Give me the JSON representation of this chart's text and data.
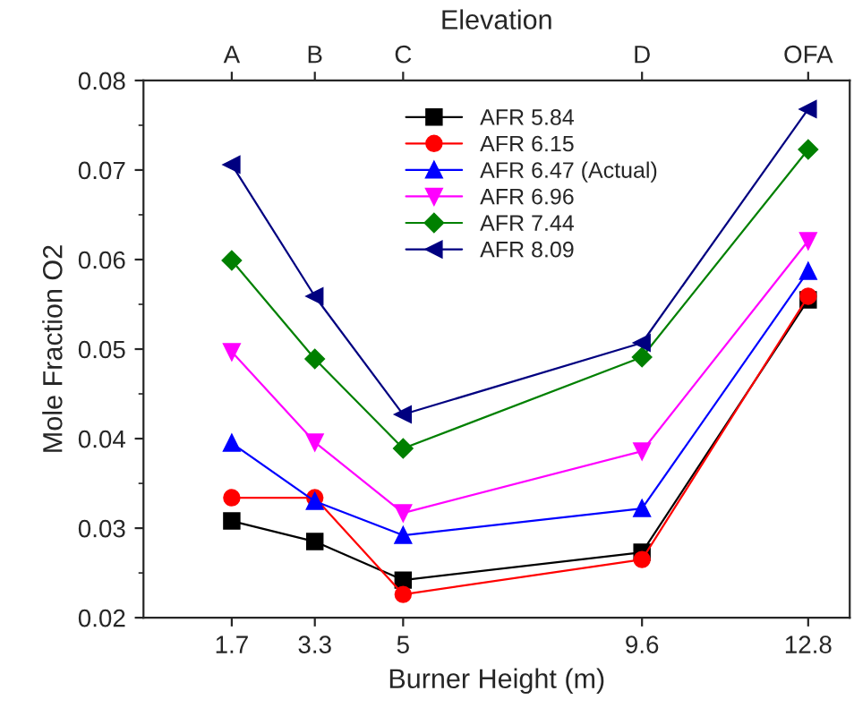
{
  "chart_data": {
    "type": "line",
    "xlabel": "Burner Height (m)",
    "ylabel": "Mole Fraction O2",
    "annotations": [
      "Elevation",
      {
        "text": "A",
        "x": 1.7
      },
      {
        "text": "B",
        "x": 3.3
      },
      {
        "text": "C",
        "x": 5
      },
      {
        "text": "D",
        "x": 9.6
      },
      {
        "text": "OFA",
        "x": 12.8
      }
    ],
    "x": [
      1.7,
      3.3,
      5,
      9.6,
      12.8
    ],
    "xlim": [
      0,
      13.6
    ],
    "xticks": [
      1.7,
      3.3,
      5,
      9.6,
      12.8
    ],
    "ylim": [
      0.02,
      0.08
    ],
    "yticks": [
      0.02,
      0.03,
      0.04,
      0.05,
      0.06,
      0.07,
      0.08
    ],
    "grid": false,
    "legend": "top",
    "line_style": "solid",
    "series": [
      {
        "name": "AFR 5.84",
        "color": "#000000",
        "marker": "square",
        "values": [
          0.0308,
          0.0285,
          0.0242,
          0.0273,
          0.0555
        ]
      },
      {
        "name": "AFR 6.15",
        "color": "#ff0000",
        "marker": "circle",
        "values": [
          0.0334,
          0.0334,
          0.0226,
          0.0265,
          0.0559
        ]
      },
      {
        "name": "AFR 6.47 (Actual)",
        "color": "#0000ff",
        "marker": "triangle",
        "values": [
          0.0395,
          0.033,
          0.0292,
          0.0322,
          0.0587
        ]
      },
      {
        "name": "AFR 6.96",
        "color": "#ff00ff",
        "marker": "triangle_down",
        "values": [
          0.0497,
          0.0396,
          0.0317,
          0.0386,
          0.0621
        ]
      },
      {
        "name": "AFR 7.44",
        "color": "#008000",
        "marker": "diamond",
        "values": [
          0.0599,
          0.0489,
          0.0389,
          0.0491,
          0.0723
        ]
      },
      {
        "name": "AFR 8.09",
        "color": "#000080",
        "marker": "triangle_left",
        "values": [
          0.0706,
          0.0559,
          0.0427,
          0.0507,
          0.0768
        ]
      }
    ]
  }
}
